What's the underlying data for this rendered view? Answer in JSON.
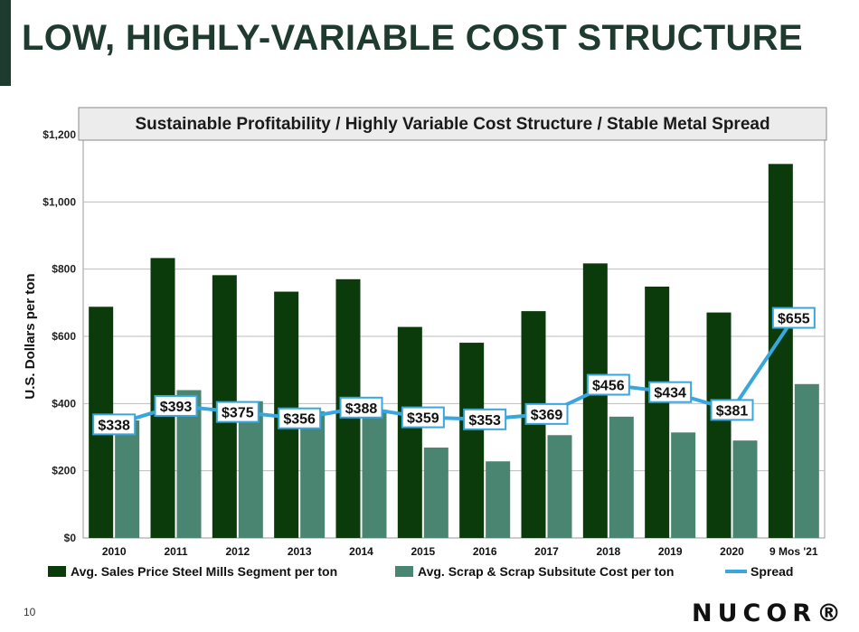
{
  "page": {
    "title": "LOW, HIGHLY-VARIABLE COST STRUCTURE",
    "page_number": "10",
    "logo_text": "NUCOR®"
  },
  "colors": {
    "title": "#1f3a2e",
    "sales_bar": "#0b3a0b",
    "scrap_bar": "#4a8572",
    "spread_line": "#39a6dd",
    "label_border": "#39a6dd",
    "header_fill": "#ececec"
  },
  "chart_data": {
    "type": "bar",
    "title": "Sustainable Profitability / Highly Variable Cost Structure / Stable Metal Spread",
    "ylabel": "U.S. Dollars per ton",
    "xlabel": "",
    "ylim": [
      0,
      1200
    ],
    "y_ticks": [
      "$0",
      "$200",
      "$400",
      "$600",
      "$800",
      "$1,000",
      "$1,200"
    ],
    "y_tick_values": [
      0,
      200,
      400,
      600,
      800,
      1000,
      1200
    ],
    "grid": true,
    "legend_position": "bottom",
    "categories": [
      "2010",
      "2011",
      "2012",
      "2013",
      "2014",
      "2015",
      "2016",
      "2017",
      "2018",
      "2019",
      "2020",
      "9 Mos '21"
    ],
    "series": [
      {
        "name": "Avg. Sales Price Steel Mills Segment per ton",
        "type": "bar",
        "values": [
          688,
          833,
          782,
          733,
          770,
          628,
          581,
          675,
          817,
          748,
          671,
          1113
        ]
      },
      {
        "name": "Avg. Scrap & Scrap Subsitute Cost per ton",
        "type": "bar",
        "values": [
          350,
          440,
          407,
          377,
          382,
          269,
          228,
          306,
          361,
          314,
          290,
          458
        ]
      },
      {
        "name": "Spread",
        "type": "line",
        "values": [
          338,
          393,
          375,
          356,
          388,
          359,
          353,
          369,
          456,
          434,
          381,
          655
        ],
        "labels": [
          "$338",
          "$393",
          "$375",
          "$356",
          "$388",
          "$359",
          "$353",
          "$369",
          "$456",
          "$434",
          "$381",
          "$655"
        ]
      }
    ]
  }
}
